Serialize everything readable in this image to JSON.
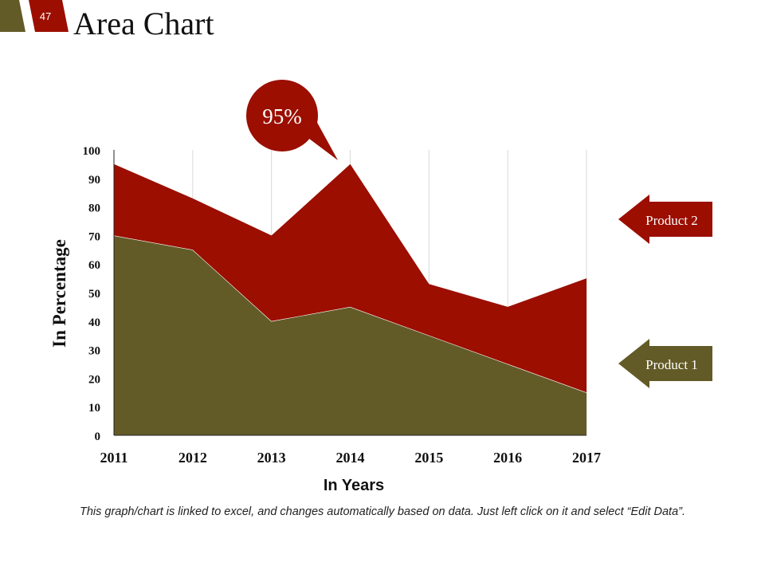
{
  "slide": {
    "number": "47",
    "title": "Area Chart",
    "footnote": "This graph/chart is linked to excel, and changes automatically based on data. Just left click on it and select “Edit Data”.",
    "colors": {
      "primary": "#9b0e00",
      "secondary": "#635b27"
    }
  },
  "callout": {
    "text": "95%"
  },
  "chart_data": {
    "type": "area",
    "stacked": true,
    "title": "",
    "xlabel": "In Years",
    "ylabel": "In Percentage",
    "categories": [
      "2011",
      "2012",
      "2013",
      "2014",
      "2015",
      "2016",
      "2017"
    ],
    "ylim": [
      0,
      100
    ],
    "yticks": [
      "0",
      "10",
      "20",
      "30",
      "40",
      "50",
      "60",
      "70",
      "80",
      "90",
      "100"
    ],
    "grid": "vertical",
    "legend_position": "right",
    "series": [
      {
        "name": "Product 1",
        "values": [
          70,
          65,
          40,
          45,
          35,
          25,
          15
        ],
        "color": "#635b27"
      },
      {
        "name": "Product 2",
        "values": [
          25,
          18,
          30,
          50,
          18,
          20,
          40
        ],
        "color": "#9b0e00"
      }
    ],
    "annotation": {
      "category": "2014",
      "text": "95%"
    }
  }
}
